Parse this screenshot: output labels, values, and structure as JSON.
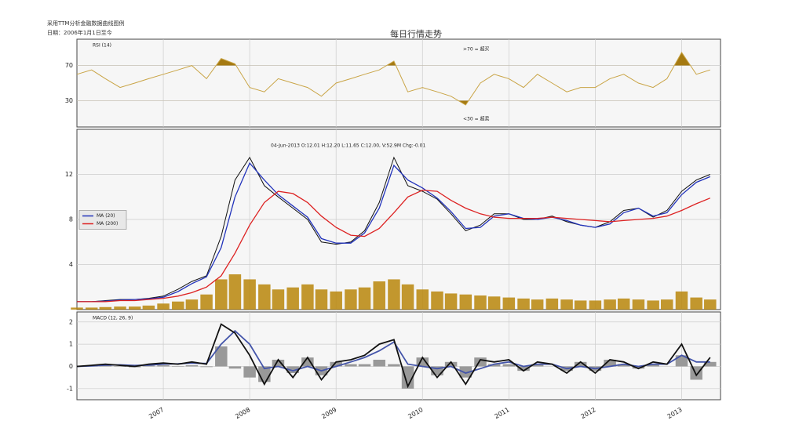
{
  "header": {
    "note": "采用TTM分析金融数据曲线图例",
    "date": "日期：2006年1月1日至今",
    "title": "每日行情走势"
  },
  "chart_data": [
    {
      "type": "line",
      "label": "RSI (14)",
      "annotations": [
        ">70 = 超买",
        "<30 = 超卖"
      ],
      "x": [
        2006,
        2006.17,
        2006.33,
        2006.5,
        2006.67,
        2006.83,
        2007,
        2007.17,
        2007.33,
        2007.5,
        2007.67,
        2007.83,
        2008,
        2008.17,
        2008.33,
        2008.5,
        2008.67,
        2008.83,
        2009,
        2009.17,
        2009.33,
        2009.5,
        2009.67,
        2009.83,
        2010,
        2010.17,
        2010.33,
        2010.5,
        2010.67,
        2010.83,
        2011,
        2011.17,
        2011.33,
        2011.5,
        2011.67,
        2011.83,
        2012,
        2012.17,
        2012.33,
        2012.5,
        2012.67,
        2012.83,
        2013,
        2013.17,
        2013.33
      ],
      "series": [
        {
          "color": "#c9a445",
          "values": [
            60,
            65,
            55,
            45,
            50,
            55,
            60,
            65,
            70,
            55,
            78,
            72,
            45,
            40,
            55,
            50,
            45,
            35,
            50,
            55,
            60,
            65,
            75,
            40,
            45,
            40,
            35,
            25,
            50,
            60,
            55,
            45,
            60,
            50,
            40,
            45,
            45,
            55,
            60,
            50,
            45,
            55,
            85,
            60,
            65
          ]
        }
      ],
      "fill_color": "#a57a12",
      "ylim": [
        0,
        100
      ],
      "yticks": [
        30,
        70
      ],
      "xlim": [
        2006,
        2013.45
      ],
      "xticks": [
        2007,
        2008,
        2009,
        2010,
        2011,
        2012,
        2013
      ],
      "grid": true
    },
    {
      "type": "line",
      "annotations": [
        "04-Jun-2013 O:12.01 H:12.20 L:11.65 C:12.00, V:52.9M Chg:-0.01"
      ],
      "x": [
        2006,
        2006.17,
        2006.33,
        2006.5,
        2006.67,
        2006.83,
        2007,
        2007.17,
        2007.33,
        2007.5,
        2007.67,
        2007.83,
        2008,
        2008.17,
        2008.33,
        2008.5,
        2008.67,
        2008.83,
        2009,
        2009.17,
        2009.33,
        2009.5,
        2009.67,
        2009.83,
        2010,
        2010.17,
        2010.33,
        2010.5,
        2010.67,
        2010.83,
        2011,
        2011.17,
        2011.33,
        2011.5,
        2011.67,
        2011.83,
        2012,
        2012.17,
        2012.33,
        2012.5,
        2012.67,
        2012.83,
        2013,
        2013.17,
        2013.33
      ],
      "volume": {
        "color": "#b8860b",
        "values": [
          20,
          20,
          25,
          30,
          30,
          40,
          60,
          80,
          100,
          150,
          300,
          350,
          300,
          250,
          200,
          220,
          250,
          200,
          180,
          200,
          220,
          280,
          300,
          250,
          200,
          180,
          160,
          150,
          140,
          130,
          120,
          110,
          100,
          110,
          100,
          90,
          90,
          100,
          110,
          100,
          90,
          100,
          180,
          120,
          100
        ]
      },
      "series": [
        {
          "color": "#111111",
          "values": [
            0.7,
            0.7,
            0.8,
            0.9,
            0.9,
            1.0,
            1.2,
            1.8,
            2.5,
            3.0,
            6.5,
            11.5,
            13.5,
            11.0,
            10.0,
            9.0,
            8.0,
            6.0,
            5.8,
            6.0,
            7.0,
            9.5,
            13.5,
            11.0,
            10.5,
            9.8,
            8.5,
            7.0,
            7.5,
            8.5,
            8.5,
            8.0,
            8.0,
            8.3,
            7.8,
            7.5,
            7.3,
            7.8,
            8.8,
            9.0,
            8.2,
            8.8,
            10.5,
            11.5,
            12.0
          ]
        },
        {
          "name": "MA (20)",
          "color": "#2233bb",
          "values": [
            0.7,
            0.7,
            0.75,
            0.85,
            0.9,
            0.95,
            1.1,
            1.6,
            2.3,
            2.9,
            5.5,
            10.0,
            13.0,
            11.5,
            10.2,
            9.2,
            8.2,
            6.3,
            5.9,
            5.9,
            6.8,
            9.0,
            12.8,
            11.5,
            10.8,
            9.9,
            8.7,
            7.2,
            7.3,
            8.3,
            8.5,
            8.1,
            8.0,
            8.2,
            7.9,
            7.5,
            7.3,
            7.6,
            8.6,
            9.0,
            8.3,
            8.6,
            10.2,
            11.3,
            11.8
          ]
        },
        {
          "name": "MA (200)",
          "color": "#dd2222",
          "values": [
            0.7,
            0.7,
            0.7,
            0.8,
            0.8,
            0.9,
            1.0,
            1.2,
            1.5,
            2.0,
            3.0,
            5.0,
            7.5,
            9.5,
            10.5,
            10.3,
            9.5,
            8.3,
            7.3,
            6.6,
            6.5,
            7.2,
            8.6,
            10.0,
            10.6,
            10.5,
            9.7,
            9.0,
            8.5,
            8.2,
            8.1,
            8.1,
            8.1,
            8.2,
            8.1,
            8.0,
            7.9,
            7.8,
            7.9,
            8.0,
            8.1,
            8.3,
            8.8,
            9.4,
            9.9
          ]
        }
      ],
      "ylim": [
        0,
        16
      ],
      "yticks": [
        4,
        8,
        12
      ],
      "xlim": [
        2006,
        2013.45
      ],
      "xticks": [
        2007,
        2008,
        2009,
        2010,
        2011,
        2012,
        2013
      ],
      "grid": true,
      "legend": "left"
    },
    {
      "type": "line",
      "label": "MACD (12, 26, 9)",
      "x": [
        2006,
        2006.17,
        2006.33,
        2006.5,
        2006.67,
        2006.83,
        2007,
        2007.17,
        2007.33,
        2007.5,
        2007.67,
        2007.83,
        2008,
        2008.17,
        2008.33,
        2008.5,
        2008.67,
        2008.83,
        2009,
        2009.17,
        2009.33,
        2009.5,
        2009.67,
        2009.83,
        2010,
        2010.17,
        2010.33,
        2010.5,
        2010.67,
        2010.83,
        2011,
        2011.17,
        2011.33,
        2011.5,
        2011.67,
        2011.83,
        2012,
        2012.17,
        2012.33,
        2012.5,
        2012.67,
        2012.83,
        2013,
        2013.17,
        2013.33
      ],
      "series": [
        {
          "type": "bar",
          "color": "#999999",
          "values": [
            0,
            0.03,
            0.04,
            -0.02,
            -0.04,
            0.04,
            0.05,
            -0.02,
            0.05,
            -0.03,
            0.9,
            -0.1,
            -0.5,
            -0.7,
            0.3,
            -0.3,
            0.4,
            -0.4,
            0.2,
            0.1,
            0.1,
            0.3,
            0.1,
            -1.0,
            0.4,
            -0.4,
            0.2,
            -0.5,
            0.4,
            0.1,
            0.1,
            -0.2,
            0.1,
            0,
            -0.2,
            0.2,
            -0.2,
            0.3,
            0.1,
            -0.1,
            0.1,
            0,
            0.5,
            -0.6,
            0.2
          ]
        },
        {
          "color": "#4455aa",
          "values": [
            0,
            0.02,
            0.06,
            0.07,
            0.04,
            0.06,
            0.1,
            0.12,
            0.15,
            0.13,
            1.0,
            1.6,
            1.0,
            -0.1,
            0.0,
            -0.2,
            0.0,
            -0.2,
            0.0,
            0.2,
            0.4,
            0.7,
            1.1,
            0.1,
            0.0,
            -0.1,
            0.0,
            -0.3,
            -0.1,
            0.1,
            0.2,
            0.0,
            0.1,
            0.1,
            -0.1,
            0.0,
            -0.1,
            0.0,
            0.1,
            0.0,
            0.1,
            0.1,
            0.5,
            0.2,
            0.2
          ]
        },
        {
          "color": "#111111",
          "values": [
            0,
            0.05,
            0.1,
            0.05,
            0,
            0.1,
            0.15,
            0.1,
            0.2,
            0.1,
            1.9,
            1.5,
            0.5,
            -0.8,
            0.3,
            -0.5,
            0.4,
            -0.6,
            0.2,
            0.3,
            0.5,
            1.0,
            1.2,
            -0.9,
            0.4,
            -0.5,
            0.2,
            -0.8,
            0.3,
            0.2,
            0.3,
            -0.2,
            0.2,
            0.1,
            -0.3,
            0.2,
            -0.3,
            0.3,
            0.2,
            -0.1,
            0.2,
            0.1,
            1.0,
            -0.4,
            0.4
          ]
        }
      ],
      "ylim": [
        -1.5,
        2.45
      ],
      "yticks": [
        -1,
        0,
        1,
        2
      ],
      "xlim": [
        2006,
        2013.45
      ],
      "xticks": [
        2007,
        2008,
        2009,
        2010,
        2011,
        2012,
        2013
      ],
      "grid": true
    }
  ]
}
